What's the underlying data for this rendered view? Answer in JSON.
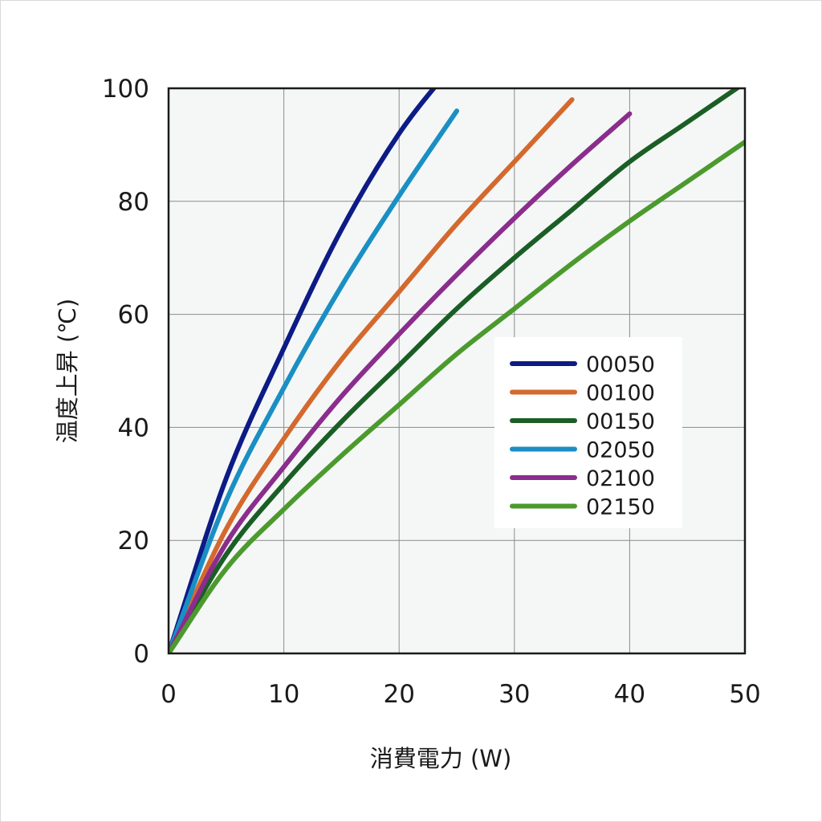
{
  "chart_data": {
    "type": "line",
    "xlabel": "消費電力 (W)",
    "ylabel": "温度上昇 (℃)",
    "xlim": [
      0,
      50
    ],
    "ylim": [
      0,
      100
    ],
    "xticks": [
      0,
      10,
      20,
      30,
      40,
      50
    ],
    "yticks": [
      0,
      20,
      40,
      60,
      80,
      100
    ],
    "grid": true,
    "legend_position": "center-right",
    "x": [
      0,
      5,
      10,
      15,
      20,
      25,
      30,
      35,
      40,
      45,
      50
    ],
    "series": [
      {
        "name": "00050",
        "color": "#0d1b86",
        "values": [
          0,
          31,
          54,
          75,
          92,
          105,
          null,
          null,
          null,
          null,
          null
        ]
      },
      {
        "name": "00100",
        "color": "#d4692e",
        "values": [
          0,
          22,
          38,
          52,
          64,
          76,
          87,
          98,
          null,
          null,
          null
        ]
      },
      {
        "name": "00150",
        "color": "#1b5e25",
        "values": [
          0,
          17.5,
          30,
          41,
          51,
          61,
          70,
          78.5,
          87,
          94,
          101
        ]
      },
      {
        "name": "02050",
        "color": "#1a8fc4",
        "values": [
          0,
          27,
          47,
          65,
          81,
          96,
          null,
          null,
          null,
          null,
          null
        ]
      },
      {
        "name": "02100",
        "color": "#8b2d8c",
        "values": [
          0,
          19.5,
          33,
          45.5,
          56.5,
          67,
          77,
          86.5,
          95.5,
          null,
          null
        ]
      },
      {
        "name": "02150",
        "color": "#4c9a2e",
        "values": [
          0,
          15,
          25.5,
          35,
          44,
          53,
          61,
          69,
          76.5,
          83.5,
          90.5
        ]
      }
    ]
  }
}
